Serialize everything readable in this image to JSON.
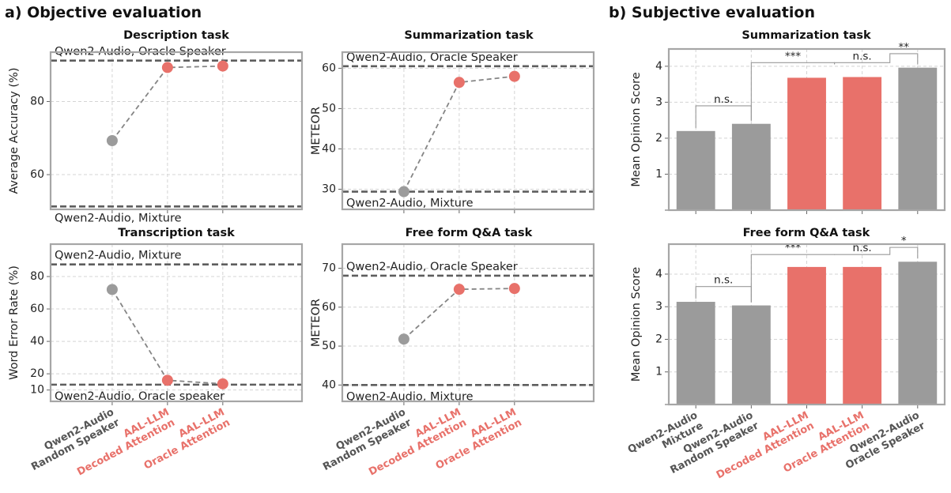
{
  "colors": {
    "gray": "#9b9b9b",
    "red": "#e8716a",
    "gray_label": "#555555",
    "red_label": "#e8716a"
  },
  "section_a": {
    "title": "a)   Objective evaluation"
  },
  "section_b": {
    "title": "b) Subjective evaluation"
  },
  "chart_data": [
    {
      "id": "description",
      "type": "line",
      "title": "Description task",
      "ylabel": "Average Accuracy (%)",
      "ylim": [
        50.5,
        93.5
      ],
      "yticks": [
        60,
        80
      ],
      "categories": [
        "Qwen2-Audio\nRandom Speaker",
        "AAL-LLM\nDecoded Attention",
        "AAL-LLM\nOracle Attention"
      ],
      "point_colors": [
        "gray",
        "red",
        "red"
      ],
      "values": [
        69.3,
        89.3,
        89.7
      ],
      "reference_lines": [
        {
          "value": 91.2,
          "label": "Qwen2-Audio, Oracle Speaker",
          "label_pos": "above"
        },
        {
          "value": 51.3,
          "label": "Qwen2-Audio, Mixture",
          "label_pos": "below"
        }
      ],
      "grid": true
    },
    {
      "id": "summarization_objective",
      "type": "line",
      "title": "Summarization task",
      "ylabel": "METEOR",
      "ylim": [
        25,
        64
      ],
      "yticks": [
        30,
        40,
        50,
        60
      ],
      "categories": [
        "Qwen2-Audio\nRandom Speaker",
        "AAL-LLM\nDecoded Attention",
        "AAL-LLM\nOracle Attention"
      ],
      "point_colors": [
        "gray",
        "red",
        "red"
      ],
      "values": [
        29.4,
        56.5,
        58.0
      ],
      "reference_lines": [
        {
          "value": 60.5,
          "label": "Qwen2-Audio, Oracle Speaker",
          "label_pos": "above"
        },
        {
          "value": 29.4,
          "label": "Qwen2-Audio, Mixture",
          "label_pos": "below"
        }
      ],
      "grid": true
    },
    {
      "id": "transcription",
      "type": "line",
      "title": "Transcription task",
      "ylabel": "Word Error Rate (%)",
      "ylim": [
        3,
        100
      ],
      "yticks": [
        10,
        20,
        40,
        60,
        80
      ],
      "categories": [
        "Qwen2-Audio\nRandom Speaker",
        "AAL-LLM\nDecoded Attention",
        "AAL-LLM\nOracle Attention"
      ],
      "point_colors": [
        "gray",
        "red",
        "red"
      ],
      "values": [
        72,
        16,
        13.8
      ],
      "reference_lines": [
        {
          "value": 87.5,
          "label": "Qwen2-Audio, Mixture",
          "label_pos": "above"
        },
        {
          "value": 13.3,
          "label": "Qwen2-Audio, Oracle speaker",
          "label_pos": "below"
        }
      ],
      "grid": true
    },
    {
      "id": "qa_objective",
      "type": "line",
      "title": "Free form Q&A task",
      "ylabel": "METEOR",
      "ylim": [
        35.8,
        76.2
      ],
      "yticks": [
        40,
        50,
        60,
        70
      ],
      "categories": [
        "Qwen2-Audio\nRandom Speaker",
        "AAL-LLM\nDecoded Attention",
        "AAL-LLM\nOracle Attention"
      ],
      "point_colors": [
        "gray",
        "red",
        "red"
      ],
      "values": [
        51.8,
        64.6,
        64.8
      ],
      "reference_lines": [
        {
          "value": 68.1,
          "label": "Qwen2-Audio, Oracle Speaker",
          "label_pos": "above"
        },
        {
          "value": 40.0,
          "label": "Qwen2-Audio, Mixture",
          "label_pos": "below"
        }
      ],
      "grid": true
    },
    {
      "id": "summarization_subjective",
      "type": "bar",
      "title": "Summarization task",
      "ylabel": "Mean Opinion Score",
      "ylim": [
        0,
        4.48
      ],
      "yticks": [
        1,
        2,
        3,
        4
      ],
      "categories": [
        "Qwen2-Audio\nMixture",
        "Qwen2-Audio\nRandom Speaker",
        "AAL-LLM\nDecoded Attention",
        "AAL-LLM\nOracle Attention",
        "Qwen2-Audio\nOracle Speaker"
      ],
      "bar_colors": [
        "gray",
        "gray",
        "red",
        "red",
        "gray"
      ],
      "values": [
        2.2,
        2.4,
        3.68,
        3.7,
        3.96
      ],
      "significance": [
        {
          "label": "n.s.",
          "from": 0,
          "to": 1,
          "level": 2.9
        },
        {
          "label": "***",
          "from": 1,
          "to": 2.5,
          "level": 4.1
        },
        {
          "label": "n.s.",
          "from": 2.5,
          "to": 3.5,
          "level": 4.1
        },
        {
          "label": "**",
          "from": 3.5,
          "to": 4,
          "level": 4.35
        }
      ],
      "grid": true
    },
    {
      "id": "qa_subjective",
      "type": "bar",
      "title": "Free form Q&A task",
      "ylabel": "Mean Opinion Score",
      "ylim": [
        0,
        4.92
      ],
      "yticks": [
        1,
        2,
        3,
        4
      ],
      "categories": [
        "Qwen2-Audio\nMixture",
        "Qwen2-Audio\nRandom Speaker",
        "AAL-LLM\nDecoded Attention",
        "AAL-LLM\nOracle Attention",
        "Qwen2-Audio\nOracle Speaker"
      ],
      "bar_colors": [
        "gray",
        "gray",
        "red",
        "red",
        "gray"
      ],
      "values": [
        3.15,
        3.04,
        4.22,
        4.22,
        4.38
      ],
      "significance": [
        {
          "label": "n.s.",
          "from": 0,
          "to": 1,
          "level": 3.62
        },
        {
          "label": "***",
          "from": 1,
          "to": 2.5,
          "level": 4.6
        },
        {
          "label": "n.s.",
          "from": 2.5,
          "to": 3.5,
          "level": 4.6
        },
        {
          "label": "*",
          "from": 3.5,
          "to": 4,
          "level": 4.82
        }
      ],
      "grid": true
    }
  ]
}
